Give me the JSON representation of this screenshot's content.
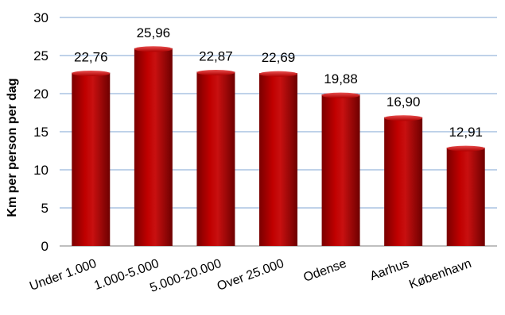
{
  "chart_data": {
    "type": "bar",
    "categories": [
      "Under 1.000",
      "1.000-5.000",
      "5.000-20.000",
      "Over 25.000",
      "Odense",
      "Aarhus",
      "København"
    ],
    "values": [
      22.76,
      25.96,
      22.87,
      22.69,
      19.88,
      16.9,
      12.91
    ],
    "value_labels": [
      "22,76",
      "25,96",
      "22,87",
      "22,69",
      "19,88",
      "16,90",
      "12,91"
    ],
    "title": "",
    "xlabel": "",
    "ylabel": "Km per person per dag",
    "ylim": [
      0,
      30
    ],
    "yticks": [
      0,
      5,
      10,
      15,
      20,
      25,
      30
    ],
    "grid": true,
    "legend": "none",
    "colors": {
      "bar": "#c00000",
      "bar_dark": "#7a0000",
      "bar_light": "#e04040",
      "gridline": "#7fa4d3",
      "axis": "#7f7f7f"
    }
  }
}
